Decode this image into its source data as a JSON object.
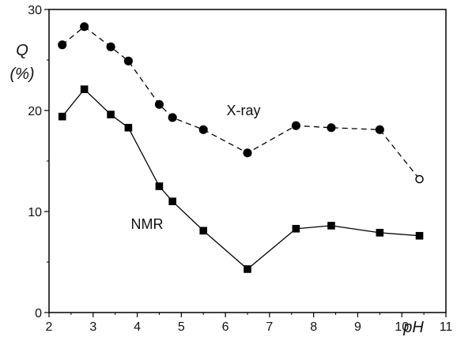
{
  "chart_data": {
    "type": "line",
    "xlabel": "pH",
    "ylabel_line1": "Q",
    "ylabel_line2": "(%)",
    "xlim": [
      2,
      11
    ],
    "ylim": [
      0,
      30
    ],
    "xticks": [
      2,
      3,
      4,
      5,
      6,
      7,
      8,
      9,
      10,
      11
    ],
    "xtick_labels": [
      "2",
      "3",
      "4",
      "5",
      "6",
      "7",
      "8",
      "9",
      "10",
      "11"
    ],
    "yticks": [
      0,
      10,
      20,
      30
    ],
    "ytick_labels": [
      "0",
      "10",
      "20",
      "30"
    ],
    "grid": false,
    "series": [
      {
        "name": "X-ray",
        "line_style": "dashed",
        "marker": "circle",
        "color": "#000000",
        "x": [
          2.3,
          2.8,
          3.4,
          3.8,
          4.5,
          4.8,
          5.5,
          6.5,
          7.6,
          8.4,
          9.5,
          10.4
        ],
        "y": [
          26.5,
          28.3,
          26.3,
          24.9,
          20.6,
          19.3,
          18.1,
          15.8,
          18.5,
          18.3,
          18.1,
          13.2
        ],
        "open_marker_last": true
      },
      {
        "name": "NMR",
        "line_style": "solid",
        "marker": "square",
        "color": "#000000",
        "x": [
          2.3,
          2.8,
          3.4,
          3.8,
          4.5,
          4.8,
          5.5,
          6.5,
          7.6,
          8.4,
          9.5,
          10.4
        ],
        "y": [
          19.4,
          22.1,
          19.6,
          18.3,
          12.5,
          11.0,
          8.1,
          4.3,
          8.3,
          8.6,
          7.9,
          7.6
        ]
      }
    ]
  }
}
